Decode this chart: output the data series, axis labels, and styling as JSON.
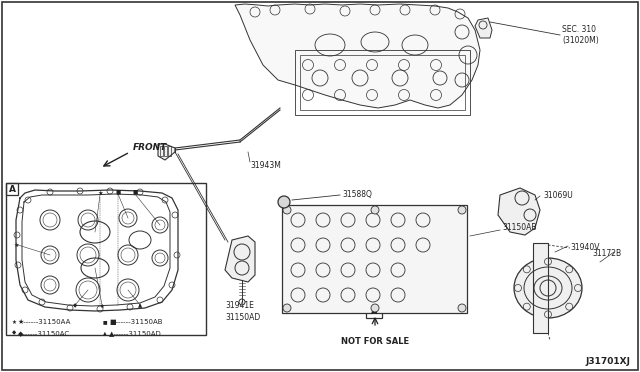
{
  "background_color": "#ffffff",
  "line_color": "#333333",
  "text_color": "#222222",
  "diagram_id": "J31701XJ",
  "labels": {
    "sec_310_line1": "SEC. 310",
    "sec_310_line2": "(31020M)",
    "label_31943M": "31943M",
    "label_31941E": "31941E",
    "label_31150AD": "31150AD",
    "label_31588Q": "31588Q",
    "label_31069U": "31069U",
    "label_31150AB": "31150AB",
    "label_31940V": "31940V",
    "label_31172B": "31172B",
    "not_for_sale": "NOT FOR SALE",
    "front_text": "FRONT",
    "legend_aa": "---31150AA",
    "legend_ab": "---31150AB",
    "legend_ac": "---31150AC",
    "legend_ad": "---31150AD",
    "box_a": "A",
    "view_a": "A"
  },
  "figsize": [
    6.4,
    3.72
  ],
  "dpi": 100
}
